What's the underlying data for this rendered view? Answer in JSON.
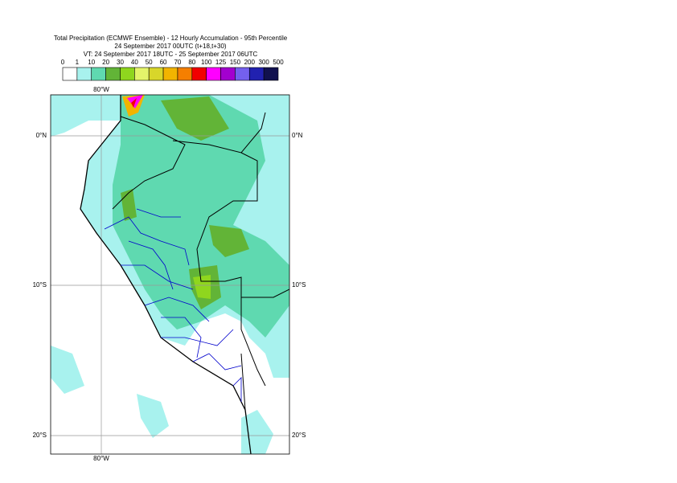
{
  "header": {
    "title": "Total Precipitation (ECMWF Ensemble) - 12 Hourly Accumulation - 95th Percentile",
    "subtitle": "24 September 2017 00UTC (t+18,t+30)",
    "valid_time": "VT: 24 September 2017 18UTC - 25 September 2017 06UTC"
  },
  "colorbar": {
    "levels": [
      0,
      1,
      10,
      20,
      30,
      40,
      50,
      60,
      70,
      80,
      100,
      125,
      150,
      200,
      300,
      500
    ],
    "colors": [
      "#ffffff",
      "#a8f2ee",
      "#5fd9b0",
      "#62b437",
      "#8fd61e",
      "#e4f46a",
      "#d8d62a",
      "#f2b400",
      "#f57f00",
      "#f20000",
      "#ff00ff",
      "#a300cf",
      "#7460ee",
      "#2121b0",
      "#11114f"
    ]
  },
  "axis_labels": {
    "top": [
      "80°W"
    ],
    "bottom": [
      "80°W"
    ],
    "left": [
      "0°N",
      "10°S",
      "20°S"
    ],
    "right": [
      "0°N",
      "10°S",
      "20°S"
    ]
  }
}
